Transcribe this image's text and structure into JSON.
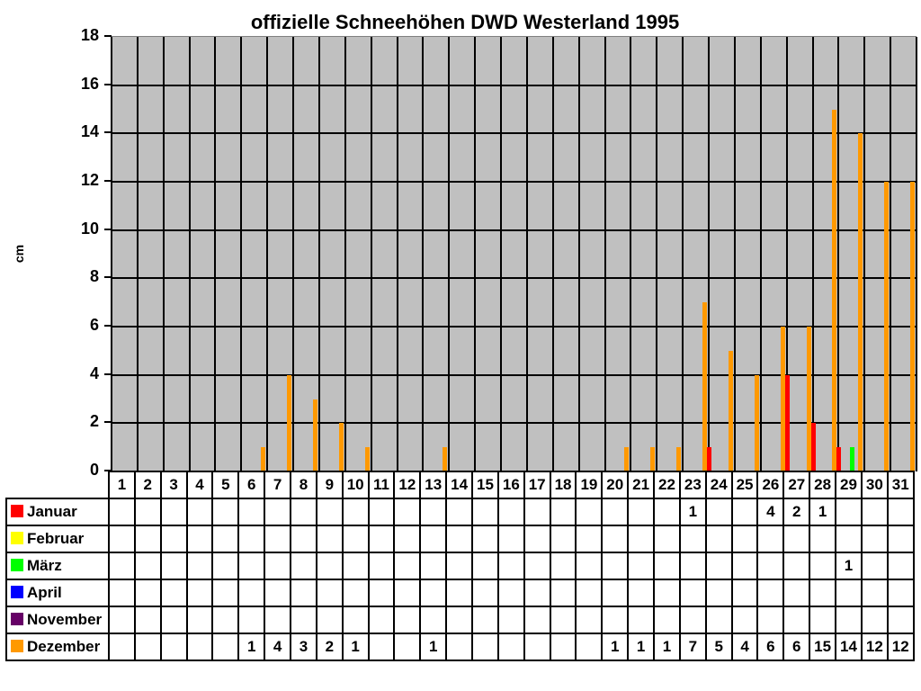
{
  "title": "offizielle Schneehöhen DWD Westerland 1995",
  "y_axis": {
    "label": "cm",
    "ticks": [
      "0",
      "2",
      "4",
      "6",
      "8",
      "10",
      "12",
      "14",
      "16",
      "18"
    ]
  },
  "days": [
    "1",
    "2",
    "3",
    "4",
    "5",
    "6",
    "7",
    "8",
    "9",
    "10",
    "11",
    "12",
    "13",
    "14",
    "15",
    "16",
    "17",
    "18",
    "19",
    "20",
    "21",
    "22",
    "23",
    "24",
    "25",
    "26",
    "27",
    "28",
    "29",
    "30",
    "31"
  ],
  "series": [
    {
      "name": "Januar",
      "color": "#ff0000",
      "cells": [
        "",
        "",
        "",
        "",
        "",
        "",
        "",
        "",
        "",
        "",
        "",
        "",
        "",
        "",
        "",
        "",
        "",
        "",
        "",
        "",
        "",
        "",
        "1",
        "",
        "",
        "4",
        "2",
        "1",
        "",
        "",
        ""
      ]
    },
    {
      "name": "Februar",
      "color": "#ffff00",
      "cells": [
        "",
        "",
        "",
        "",
        "",
        "",
        "",
        "",
        "",
        "",
        "",
        "",
        "",
        "",
        "",
        "",
        "",
        "",
        "",
        "",
        "",
        "",
        "",
        "",
        "",
        "",
        "",
        "",
        "",
        "",
        ""
      ]
    },
    {
      "name": "März",
      "color": "#00ff00",
      "cells": [
        "",
        "",
        "",
        "",
        "",
        "",
        "",
        "",
        "",
        "",
        "",
        "",
        "",
        "",
        "",
        "",
        "",
        "",
        "",
        "",
        "",
        "",
        "",
        "",
        "",
        "",
        "",
        "",
        "1",
        "",
        ""
      ]
    },
    {
      "name": "April",
      "color": "#0000ff",
      "cells": [
        "",
        "",
        "",
        "",
        "",
        "",
        "",
        "",
        "",
        "",
        "",
        "",
        "",
        "",
        "",
        "",
        "",
        "",
        "",
        "",
        "",
        "",
        "",
        "",
        "",
        "",
        "",
        "",
        "",
        "",
        ""
      ]
    },
    {
      "name": "November",
      "color": "#660066",
      "cells": [
        "",
        "",
        "",
        "",
        "",
        "",
        "",
        "",
        "",
        "",
        "",
        "",
        "",
        "",
        "",
        "",
        "",
        "",
        "",
        "",
        "",
        "",
        "",
        "",
        "",
        "",
        "",
        "",
        "",
        "",
        ""
      ]
    },
    {
      "name": "Dezember",
      "color": "#ff9900",
      "cells": [
        "",
        "",
        "",
        "",
        "",
        "1",
        "4",
        "3",
        "2",
        "1",
        "",
        "",
        "1",
        "",
        "",
        "",
        "",
        "",
        "",
        "1",
        "1",
        "1",
        "7",
        "5",
        "4",
        "6",
        "6",
        "15",
        "14",
        "12",
        "12"
      ]
    }
  ],
  "chart_data": {
    "type": "bar",
    "title": "offizielle Schneehöhen DWD Westerland 1995",
    "xlabel": "",
    "ylabel": "cm",
    "ylim": [
      0,
      18
    ],
    "grid": true,
    "legend_position": "table-below",
    "categories": [
      "1",
      "2",
      "3",
      "4",
      "5",
      "6",
      "7",
      "8",
      "9",
      "10",
      "11",
      "12",
      "13",
      "14",
      "15",
      "16",
      "17",
      "18",
      "19",
      "20",
      "21",
      "22",
      "23",
      "24",
      "25",
      "26",
      "27",
      "28",
      "29",
      "30",
      "31"
    ],
    "series": [
      {
        "name": "Januar",
        "color": "#ff0000",
        "values": [
          0,
          0,
          0,
          0,
          0,
          0,
          0,
          0,
          0,
          0,
          0,
          0,
          0,
          0,
          0,
          0,
          0,
          0,
          0,
          0,
          0,
          0,
          1,
          0,
          0,
          4,
          2,
          1,
          0,
          0,
          0
        ]
      },
      {
        "name": "Februar",
        "color": "#ffff00",
        "values": [
          0,
          0,
          0,
          0,
          0,
          0,
          0,
          0,
          0,
          0,
          0,
          0,
          0,
          0,
          0,
          0,
          0,
          0,
          0,
          0,
          0,
          0,
          0,
          0,
          0,
          0,
          0,
          0,
          0,
          0,
          0
        ]
      },
      {
        "name": "März",
        "color": "#00ff00",
        "values": [
          0,
          0,
          0,
          0,
          0,
          0,
          0,
          0,
          0,
          0,
          0,
          0,
          0,
          0,
          0,
          0,
          0,
          0,
          0,
          0,
          0,
          0,
          0,
          0,
          0,
          0,
          0,
          0,
          1,
          0,
          0
        ]
      },
      {
        "name": "April",
        "color": "#0000ff",
        "values": [
          0,
          0,
          0,
          0,
          0,
          0,
          0,
          0,
          0,
          0,
          0,
          0,
          0,
          0,
          0,
          0,
          0,
          0,
          0,
          0,
          0,
          0,
          0,
          0,
          0,
          0,
          0,
          0,
          0,
          0,
          0
        ]
      },
      {
        "name": "November",
        "color": "#660066",
        "values": [
          0,
          0,
          0,
          0,
          0,
          0,
          0,
          0,
          0,
          0,
          0,
          0,
          0,
          0,
          0,
          0,
          0,
          0,
          0,
          0,
          0,
          0,
          0,
          0,
          0,
          0,
          0,
          0,
          0,
          0,
          0
        ]
      },
      {
        "name": "Dezember",
        "color": "#ff9900",
        "values": [
          0,
          0,
          0,
          0,
          0,
          1,
          4,
          3,
          2,
          1,
          0,
          0,
          1,
          0,
          0,
          0,
          0,
          0,
          0,
          1,
          1,
          1,
          7,
          5,
          4,
          6,
          6,
          15,
          14,
          12,
          12
        ]
      }
    ]
  }
}
